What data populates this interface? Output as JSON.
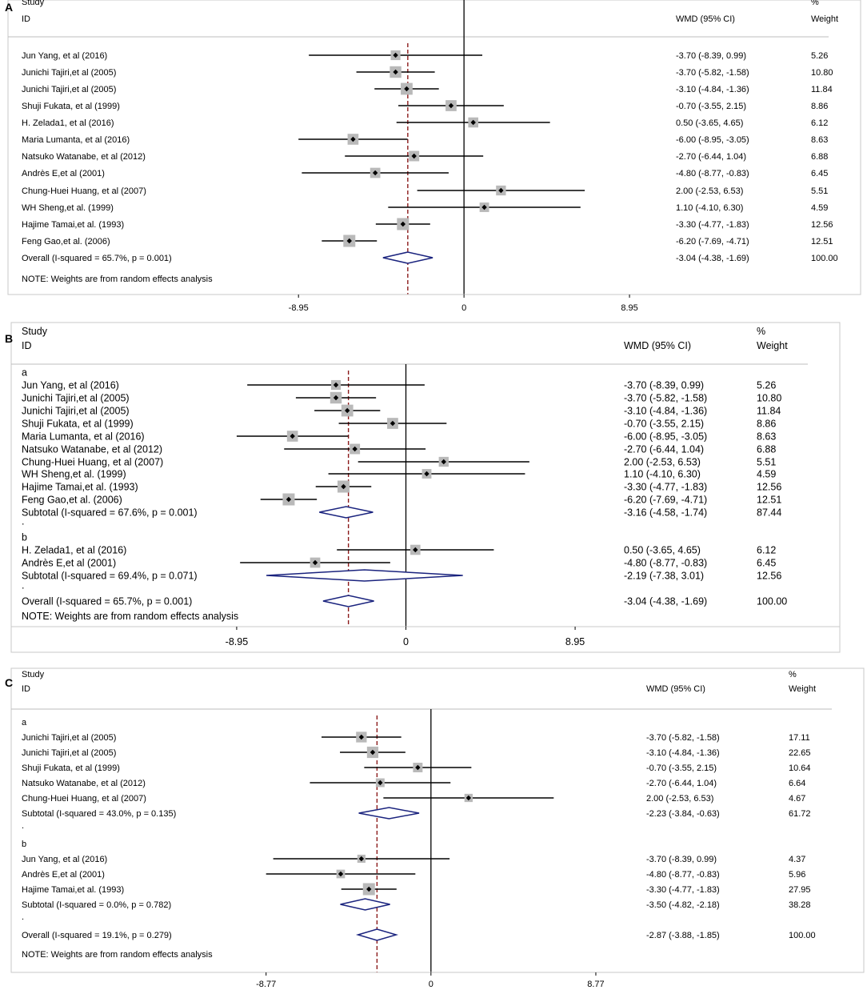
{
  "chart_data": [
    {
      "type": "forest",
      "panel_label": "A",
      "header": {
        "study": "Study",
        "id": "ID",
        "effect": "WMD (95% CI)",
        "pct": "%",
        "weight": "Weight"
      },
      "axis": {
        "xlim": [
          -13.5,
          14.7
        ],
        "ticks": [
          -8.95,
          0,
          8.95
        ],
        "tick_labels": [
          "-8.95",
          "0",
          "8.95"
        ]
      },
      "pooled_estimate": -3.04,
      "note": "NOTE: Weights are from random effects analysis",
      "rows": [
        {
          "kind": "study",
          "label": "Jun Yang, et al (2016)",
          "est": -3.7,
          "lo": -8.39,
          "hi": 0.99,
          "ci": "-3.70 (-8.39, 0.99)",
          "weight": "5.26"
        },
        {
          "kind": "study",
          "label": "Junichi Tajiri,et al (2005)",
          "est": -3.7,
          "lo": -5.82,
          "hi": -1.58,
          "ci": "-3.70 (-5.82, -1.58)",
          "weight": "10.80"
        },
        {
          "kind": "study",
          "label": "Junichi Tajiri,et al (2005)",
          "est": -3.1,
          "lo": -4.84,
          "hi": -1.36,
          "ci": "-3.10 (-4.84, -1.36)",
          "weight": "11.84"
        },
        {
          "kind": "study",
          "label": "Shuji Fukata, et al (1999)",
          "est": -0.7,
          "lo": -3.55,
          "hi": 2.15,
          "ci": "-0.70 (-3.55, 2.15)",
          "weight": "8.86"
        },
        {
          "kind": "study",
          "label": "H. Zelada1, et al (2016)",
          "est": 0.5,
          "lo": -3.65,
          "hi": 4.65,
          "ci": "0.50 (-3.65, 4.65)",
          "weight": "6.12"
        },
        {
          "kind": "study",
          "label": "Maria Lumanta, et al (2016)",
          "est": -6.0,
          "lo": -8.95,
          "hi": -3.05,
          "ci": "-6.00 (-8.95, -3.05)",
          "weight": "8.63"
        },
        {
          "kind": "study",
          "label": "Natsuko Watanabe, et al (2012)",
          "est": -2.7,
          "lo": -6.44,
          "hi": 1.04,
          "ci": "-2.70 (-6.44, 1.04)",
          "weight": "6.88"
        },
        {
          "kind": "study",
          "label": "Andrès E,et al (2001)",
          "est": -4.8,
          "lo": -8.77,
          "hi": -0.83,
          "ci": "-4.80 (-8.77, -0.83)",
          "weight": "6.45"
        },
        {
          "kind": "study",
          "label": "Chung-Huei Huang,  et al (2007)",
          "est": 2.0,
          "lo": -2.53,
          "hi": 6.53,
          "ci": "2.00 (-2.53, 6.53)",
          "weight": "5.51"
        },
        {
          "kind": "study",
          "label": "WH Sheng,et al. (1999)",
          "est": 1.1,
          "lo": -4.1,
          "hi": 6.3,
          "ci": "1.10 (-4.10, 6.30)",
          "weight": "4.59"
        },
        {
          "kind": "study",
          "label": "Hajime Tamai,et al. (1993)",
          "est": -3.3,
          "lo": -4.77,
          "hi": -1.83,
          "ci": "-3.30 (-4.77, -1.83)",
          "weight": "12.56"
        },
        {
          "kind": "study",
          "label": "Feng Gao,et al. (2006)",
          "est": -6.2,
          "lo": -7.69,
          "hi": -4.71,
          "ci": "-6.20 (-7.69, -4.71)",
          "weight": "12.51"
        },
        {
          "kind": "overall",
          "label": "Overall  (I-squared = 65.7%, p = 0.001)",
          "est": -3.04,
          "lo": -4.38,
          "hi": -1.69,
          "ci": "-3.04 (-4.38, -1.69)",
          "weight": "100.00"
        }
      ]
    },
    {
      "type": "forest",
      "panel_label": "B",
      "header": {
        "study": "Study",
        "id": "ID",
        "effect": "WMD (95% CI)",
        "pct": "%",
        "weight": "Weight"
      },
      "axis": {
        "xlim": [
          -12.5,
          14.7
        ],
        "ticks": [
          -8.95,
          0,
          8.95
        ],
        "tick_labels": [
          "-8.95",
          "0",
          "8.95"
        ]
      },
      "pooled_estimate": -3.04,
      "note": "NOTE: Weights are from random effects analysis",
      "rows": [
        {
          "kind": "group",
          "label": "a"
        },
        {
          "kind": "study",
          "label": "Jun Yang, et al (2016)",
          "est": -3.7,
          "lo": -8.39,
          "hi": 0.99,
          "ci": "-3.70 (-8.39, 0.99)",
          "weight": "5.26"
        },
        {
          "kind": "study",
          "label": "Junichi Tajiri,et al (2005)",
          "est": -3.7,
          "lo": -5.82,
          "hi": -1.58,
          "ci": "-3.70 (-5.82, -1.58)",
          "weight": "10.80"
        },
        {
          "kind": "study",
          "label": "Junichi Tajiri,et al (2005)",
          "est": -3.1,
          "lo": -4.84,
          "hi": -1.36,
          "ci": "-3.10 (-4.84, -1.36)",
          "weight": "11.84"
        },
        {
          "kind": "study",
          "label": "Shuji Fukata, et al (1999)",
          "est": -0.7,
          "lo": -3.55,
          "hi": 2.15,
          "ci": "-0.70 (-3.55, 2.15)",
          "weight": "8.86"
        },
        {
          "kind": "study",
          "label": "Maria Lumanta, et al (2016)",
          "est": -6.0,
          "lo": -8.95,
          "hi": -3.05,
          "ci": "-6.00 (-8.95, -3.05)",
          "weight": "8.63"
        },
        {
          "kind": "study",
          "label": "Natsuko Watanabe, et al (2012)",
          "est": -2.7,
          "lo": -6.44,
          "hi": 1.04,
          "ci": "-2.70 (-6.44, 1.04)",
          "weight": "6.88"
        },
        {
          "kind": "study",
          "label": "Chung-Huei Huang,  et al (2007)",
          "est": 2.0,
          "lo": -2.53,
          "hi": 6.53,
          "ci": "2.00 (-2.53, 6.53)",
          "weight": "5.51"
        },
        {
          "kind": "study",
          "label": "WH Sheng,et al. (1999)",
          "est": 1.1,
          "lo": -4.1,
          "hi": 6.3,
          "ci": "1.10 (-4.10, 6.30)",
          "weight": "4.59"
        },
        {
          "kind": "study",
          "label": "Hajime Tamai,et al. (1993)",
          "est": -3.3,
          "lo": -4.77,
          "hi": -1.83,
          "ci": "-3.30 (-4.77, -1.83)",
          "weight": "12.56"
        },
        {
          "kind": "study",
          "label": "Feng Gao,et al. (2006)",
          "est": -6.2,
          "lo": -7.69,
          "hi": -4.71,
          "ci": "-6.20 (-7.69, -4.71)",
          "weight": "12.51"
        },
        {
          "kind": "subtotal",
          "label": "Subtotal  (I-squared = 67.6%, p = 0.001)",
          "est": -3.16,
          "lo": -4.58,
          "hi": -1.74,
          "ci": "-3.16 (-4.58, -1.74)",
          "weight": "87.44"
        },
        {
          "kind": "spacer",
          "label": "."
        },
        {
          "kind": "group",
          "label": "b"
        },
        {
          "kind": "study",
          "label": "H. Zelada1, et al (2016)",
          "est": 0.5,
          "lo": -3.65,
          "hi": 4.65,
          "ci": "0.50 (-3.65, 4.65)",
          "weight": "6.12"
        },
        {
          "kind": "study",
          "label": "Andrès E,et al (2001)",
          "est": -4.8,
          "lo": -8.77,
          "hi": -0.83,
          "ci": "-4.80 (-8.77, -0.83)",
          "weight": "6.45"
        },
        {
          "kind": "subtotal",
          "label": "Subtotal  (I-squared = 69.4%, p = 0.071)",
          "est": -2.19,
          "lo": -7.38,
          "hi": 3.01,
          "ci": "-2.19 (-7.38, 3.01)",
          "weight": "12.56"
        },
        {
          "kind": "spacer",
          "label": "."
        },
        {
          "kind": "overall",
          "label": "Overall  (I-squared = 65.7%, p = 0.001)",
          "est": -3.04,
          "lo": -4.38,
          "hi": -1.69,
          "ci": "-3.04 (-4.38, -1.69)",
          "weight": "100.00"
        }
      ]
    },
    {
      "type": "forest",
      "panel_label": "C",
      "header": {
        "study": "Study",
        "id": "ID",
        "effect": "WMD (95% CI)",
        "pct": "%",
        "weight": "Weight"
      },
      "axis": {
        "xlim": [
          -12.5,
          14.6
        ],
        "ticks": [
          -8.77,
          0,
          8.77
        ],
        "tick_labels": [
          "-8.77",
          "0",
          "8.77"
        ]
      },
      "pooled_estimate": -2.87,
      "note": "NOTE: Weights are from random effects analysis",
      "rows": [
        {
          "kind": "group",
          "label": "a"
        },
        {
          "kind": "study",
          "label": "Junichi Tajiri,et al (2005)",
          "est": -3.7,
          "lo": -5.82,
          "hi": -1.58,
          "ci": "-3.70 (-5.82, -1.58)",
          "weight": "17.11"
        },
        {
          "kind": "study",
          "label": "Junichi Tajiri,et al (2005)",
          "est": -3.1,
          "lo": -4.84,
          "hi": -1.36,
          "ci": "-3.10 (-4.84, -1.36)",
          "weight": "22.65"
        },
        {
          "kind": "study",
          "label": "Shuji Fukata, et al (1999)",
          "est": -0.7,
          "lo": -3.55,
          "hi": 2.15,
          "ci": "-0.70 (-3.55, 2.15)",
          "weight": "10.64"
        },
        {
          "kind": "study",
          "label": "Natsuko Watanabe, et al (2012)",
          "est": -2.7,
          "lo": -6.44,
          "hi": 1.04,
          "ci": "-2.70 (-6.44, 1.04)",
          "weight": "6.64"
        },
        {
          "kind": "study",
          "label": "Chung-Huei Huang,  et al (2007)",
          "est": 2.0,
          "lo": -2.53,
          "hi": 6.53,
          "ci": "2.00 (-2.53, 6.53)",
          "weight": "4.67"
        },
        {
          "kind": "subtotal",
          "label": "Subtotal  (I-squared = 43.0%, p = 0.135)",
          "est": -2.23,
          "lo": -3.84,
          "hi": -0.63,
          "ci": "-2.23 (-3.84, -0.63)",
          "weight": "61.72"
        },
        {
          "kind": "spacer",
          "label": "."
        },
        {
          "kind": "group",
          "label": "b"
        },
        {
          "kind": "study",
          "label": "Jun Yang, et al (2016)",
          "est": -3.7,
          "lo": -8.39,
          "hi": 0.99,
          "ci": "-3.70 (-8.39, 0.99)",
          "weight": "4.37"
        },
        {
          "kind": "study",
          "label": "Andrès E,et al (2001)",
          "est": -4.8,
          "lo": -8.77,
          "hi": -0.83,
          "ci": "-4.80 (-8.77, -0.83)",
          "weight": "5.96"
        },
        {
          "kind": "study",
          "label": "Hajime Tamai,et al. (1993)",
          "est": -3.3,
          "lo": -4.77,
          "hi": -1.83,
          "ci": "-3.30 (-4.77, -1.83)",
          "weight": "27.95"
        },
        {
          "kind": "subtotal",
          "label": "Subtotal  (I-squared = 0.0%, p = 0.782)",
          "est": -3.5,
          "lo": -4.82,
          "hi": -2.18,
          "ci": "-3.50 (-4.82, -2.18)",
          "weight": "38.28"
        },
        {
          "kind": "spacer",
          "label": "."
        },
        {
          "kind": "overall",
          "label": "Overall  (I-squared = 19.1%, p = 0.279)",
          "est": -2.87,
          "lo": -3.88,
          "hi": -1.85,
          "ci": "-2.87 (-3.88, -1.85)",
          "weight": "100.00"
        }
      ]
    }
  ],
  "colors": {
    "diamond": "#1a237e",
    "pooled_line": "#8b1a1a",
    "box": "#b9b9b9",
    "line": "#000000",
    "divider": "#bdbdbd"
  }
}
